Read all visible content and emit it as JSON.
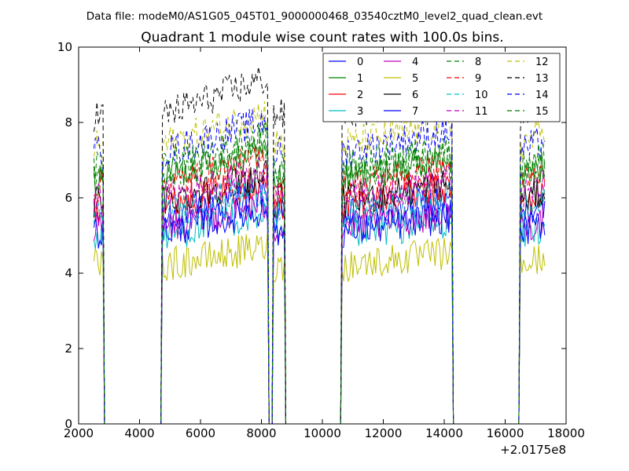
{
  "chart_data": {
    "type": "line",
    "suptitle": "Data file: modeM0/AS1G05_045T01_9000000468_03540cztM0_level2_quad_clean.evt",
    "title": "Quadrant 1 module wise count rates with 100.0s bins.",
    "xlabel": "",
    "ylabel": "",
    "xlim": [
      2000,
      18000
    ],
    "ylim": [
      0,
      10
    ],
    "x_offset_label": "+2.0175e8",
    "xticks": [
      2000,
      4000,
      6000,
      8000,
      10000,
      12000,
      14000,
      16000,
      18000
    ],
    "xtick_labels": [
      "2000",
      "4000",
      "6000",
      "8000",
      "10000",
      "12000",
      "14000",
      "16000",
      "18000"
    ],
    "yticks": [
      0,
      2,
      4,
      6,
      8,
      10
    ],
    "ytick_labels": [
      "0",
      "2",
      "4",
      "6",
      "8",
      "10"
    ],
    "grid": false,
    "legend_placement": "top-right",
    "legend_columns": 4,
    "series": [
      {
        "name": "0",
        "color": "#0000ff",
        "style": "solid",
        "level": 5.5
      },
      {
        "name": "1",
        "color": "#008000",
        "style": "solid",
        "level": 6.5
      },
      {
        "name": "2",
        "color": "#ff0000",
        "style": "solid",
        "level": 5.8
      },
      {
        "name": "3",
        "color": "#00bfbf",
        "style": "solid",
        "level": 5.0
      },
      {
        "name": "4",
        "color": "#bf00bf",
        "style": "solid",
        "level": 5.2
      },
      {
        "name": "5",
        "color": "#bfbf00",
        "style": "solid",
        "level": 4.2
      },
      {
        "name": "6",
        "color": "#000000",
        "style": "solid",
        "level": 5.9
      },
      {
        "name": "7",
        "color": "#0000ff",
        "style": "solid",
        "level": 5.1
      },
      {
        "name": "8",
        "color": "#008000",
        "style": "dashed",
        "level": 6.6
      },
      {
        "name": "9",
        "color": "#ff0000",
        "style": "dashed",
        "level": 6.3
      },
      {
        "name": "10",
        "color": "#00bfbf",
        "style": "dashed",
        "level": 5.6
      },
      {
        "name": "11",
        "color": "#bf00bf",
        "style": "dashed",
        "level": 6.0
      },
      {
        "name": "12",
        "color": "#bfbf00",
        "style": "dashed",
        "level": 7.4
      },
      {
        "name": "13",
        "color": "#000000",
        "style": "dashed",
        "level": 8.2
      },
      {
        "name": "14",
        "color": "#0000ff",
        "style": "dashed",
        "level": 7.2
      },
      {
        "name": "15",
        "color": "#008000",
        "style": "dashed",
        "level": 6.8
      }
    ],
    "active_intervals": [
      {
        "start": 2500,
        "end": 2800,
        "ramp": 0.0
      },
      {
        "start": 4750,
        "end": 8200,
        "ramp": 0.12
      },
      {
        "start": 8400,
        "end": 8750,
        "ramp": 0.0
      },
      {
        "start": 10650,
        "end": 14250,
        "ramp": 0.08
      },
      {
        "start": 16500,
        "end": 17300,
        "ramp": 0.05
      }
    ]
  }
}
